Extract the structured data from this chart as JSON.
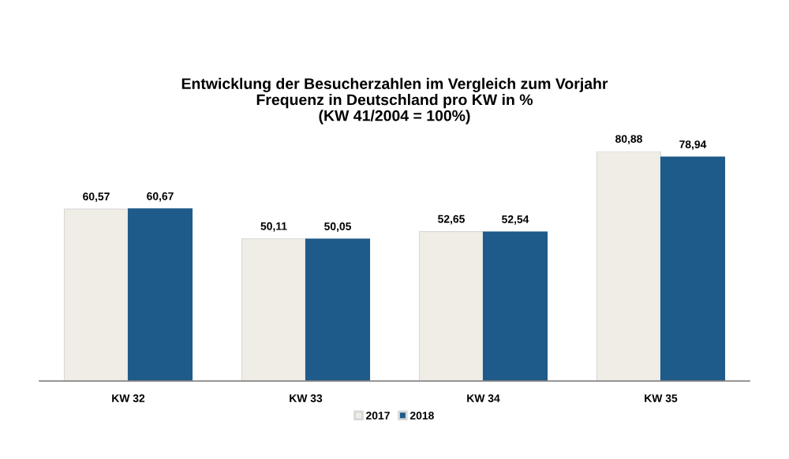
{
  "chart_data": {
    "type": "bar",
    "title": "Entwicklung der Besucherzahlen im Vergleich zum Vorjahr\nFrequenz in Deutschland pro KW in %\n(KW 41/2004 = 100%)",
    "categories": [
      "KW 32",
      "KW 33",
      "KW 34",
      "KW 35"
    ],
    "series": [
      {
        "name": "2017",
        "color": "#f0ede6",
        "values": [
          60.57,
          50.11,
          52.65,
          80.88
        ],
        "value_labels": [
          "60,57",
          "50,11",
          "52,65",
          "80,88"
        ]
      },
      {
        "name": "2018",
        "color": "#1f5b8a",
        "values": [
          60.67,
          50.05,
          52.54,
          78.94
        ],
        "value_labels": [
          "60,67",
          "50,05",
          "52,54",
          "78,94"
        ]
      }
    ],
    "legend": "bottom",
    "grid": false
  }
}
